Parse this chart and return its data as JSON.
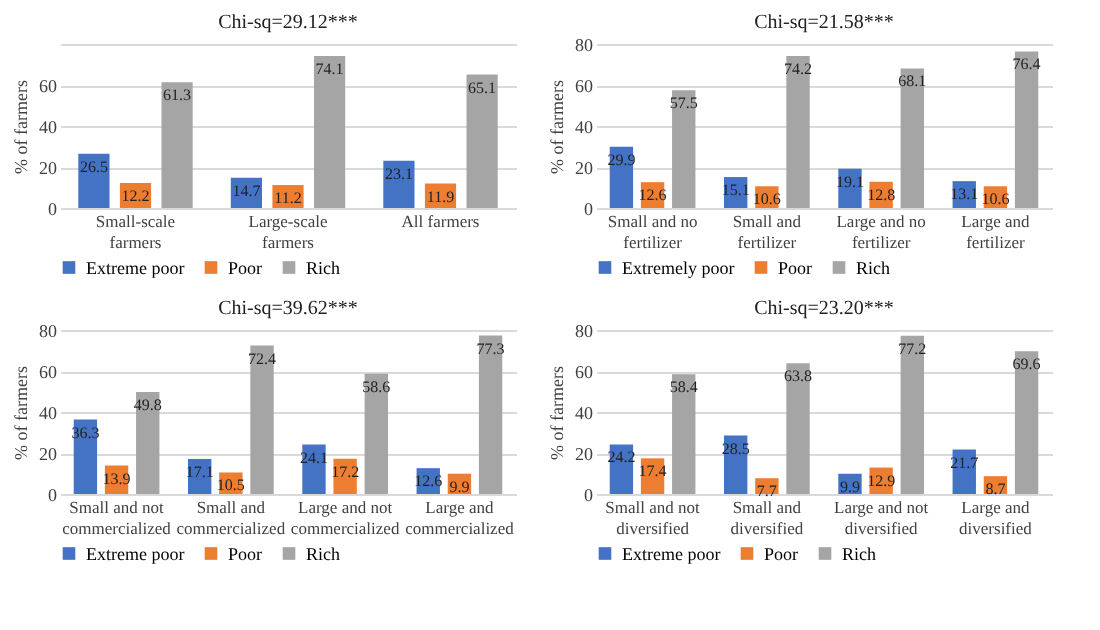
{
  "chart_data": [
    {
      "type": "bar",
      "title": "Chi-sq=29.12***",
      "ylabel": "% of farmers",
      "categories": [
        "Small-scale farmers",
        "Large-scale farmers",
        "All farmers"
      ],
      "series": [
        {
          "name": "Extreme poor",
          "color": "#4472c4",
          "values": [
            26.5,
            14.7,
            23.1
          ]
        },
        {
          "name": "Poor",
          "color": "#ed7d31",
          "values": [
            12.2,
            11.2,
            11.9
          ]
        },
        {
          "name": "Rich",
          "color": "#a5a5a5",
          "values": [
            61.3,
            74.1,
            65.1
          ]
        }
      ],
      "ylim": [
        0,
        80
      ],
      "yticks": [
        0,
        20,
        40,
        60,
        {
          "value": 80,
          "label": null
        }
      ],
      "grid": "y",
      "legend": "bottom",
      "data_labels": true
    },
    {
      "type": "bar",
      "title": "Chi-sq=21.58***",
      "ylabel": "% of farmers",
      "categories": [
        "Small and no fertilizer",
        "Small and fertilizer",
        "Large and no fertilizer",
        "Large and fertilizer"
      ],
      "series": [
        {
          "name": "Extremely poor",
          "color": "#4472c4",
          "values": [
            29.9,
            15.1,
            19.1,
            13.1
          ]
        },
        {
          "name": "Poor",
          "color": "#ed7d31",
          "values": [
            12.6,
            10.6,
            12.8,
            10.6
          ]
        },
        {
          "name": "Rich",
          "color": "#a5a5a5",
          "values": [
            57.5,
            74.2,
            68.1,
            76.4
          ]
        }
      ],
      "ylim": [
        0,
        80
      ],
      "yticks": [
        0,
        20,
        40,
        60,
        80
      ],
      "grid": "y",
      "legend": "bottom",
      "data_labels": true
    },
    {
      "type": "bar",
      "title": "Chi-sq=39.62***",
      "ylabel": "% of farmers",
      "categories": [
        "Small and not commercialized",
        "Small and commercialized",
        "Large and not commercialized",
        "Large and commercialized"
      ],
      "series": [
        {
          "name": "Extreme poor",
          "color": "#4472c4",
          "values": [
            36.3,
            17.1,
            24.1,
            12.6
          ]
        },
        {
          "name": "Poor",
          "color": "#ed7d31",
          "values": [
            13.9,
            10.5,
            17.2,
            9.9
          ]
        },
        {
          "name": "Rich",
          "color": "#a5a5a5",
          "values": [
            49.8,
            72.4,
            58.6,
            77.3
          ]
        }
      ],
      "ylim": [
        0,
        80
      ],
      "yticks": [
        0,
        20,
        40,
        60,
        80
      ],
      "grid": "y",
      "legend": "bottom",
      "data_labels": true
    },
    {
      "type": "bar",
      "title": "Chi-sq=23.20***",
      "ylabel": "% of farmers",
      "categories": [
        "Small and not diversified",
        "Small and diversified",
        "Large and not diversified",
        "Large and diversified"
      ],
      "series": [
        {
          "name": "Extreme poor",
          "color": "#4472c4",
          "values": [
            24.2,
            28.5,
            9.9,
            21.7
          ]
        },
        {
          "name": "Poor",
          "color": "#ed7d31",
          "values": [
            17.4,
            7.7,
            12.9,
            8.7
          ]
        },
        {
          "name": "Rich",
          "color": "#a5a5a5",
          "values": [
            58.4,
            63.8,
            77.2,
            69.6
          ]
        }
      ],
      "ylim": [
        0,
        80
      ],
      "yticks": [
        0,
        20,
        40,
        60,
        80
      ],
      "grid": "y",
      "legend": "bottom",
      "data_labels": true
    }
  ]
}
